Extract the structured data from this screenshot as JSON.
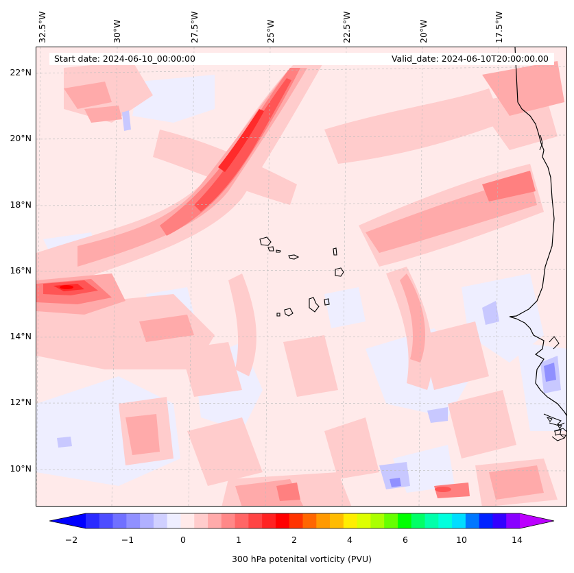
{
  "header": {
    "start_date": "Start date: 2024-06-10_00:00:00",
    "valid_date": "Valid_date: 2024-06-10T20:00:00.00"
  },
  "map": {
    "lon_labels": [
      "32.5°W",
      "30°W",
      "27.5°W",
      "25°W",
      "22.5°W",
      "20°W",
      "17.5°W"
    ],
    "lat_labels": [
      "22°N",
      "20°N",
      "18°N",
      "16°N",
      "14°N",
      "12°N",
      "10°N"
    ],
    "colors": {
      "background": "#ffeaea",
      "light_pink": "#ffcccc",
      "pink": "#ffaaaa",
      "salmon": "#ff8080",
      "red_mid": "#ff5555",
      "red": "#ff2a2a",
      "red_max": "#ff0000",
      "pale_blue": "#eeeeff",
      "light_blue": "#c8c8ff",
      "blue": "#9090ff",
      "coast": "#000000"
    }
  },
  "colorbar": {
    "ticks": [
      "−2",
      "−1",
      "0",
      "1",
      "2",
      "4",
      "6",
      "10",
      "14"
    ],
    "label": "300 hPa potenital vorticity (PVU)",
    "colors": [
      "#0000ff",
      "#2a2aff",
      "#4d4dff",
      "#7070ff",
      "#9090ff",
      "#b0b0ff",
      "#d0d0ff",
      "#eeeeff",
      "#ffeaea",
      "#ffcccc",
      "#ffaaaa",
      "#ff8888",
      "#ff6666",
      "#ff4444",
      "#ff2222",
      "#ff0000",
      "#ff3300",
      "#ff6600",
      "#ff9900",
      "#ffbb00",
      "#ffee00",
      "#ddff00",
      "#aaff00",
      "#66ff00",
      "#00ff00",
      "#00ff66",
      "#00ffaa",
      "#00ffdd",
      "#00ddff",
      "#0077ff",
      "#0022ff",
      "#3300ff",
      "#8800ff",
      "#bb00ff"
    ]
  }
}
